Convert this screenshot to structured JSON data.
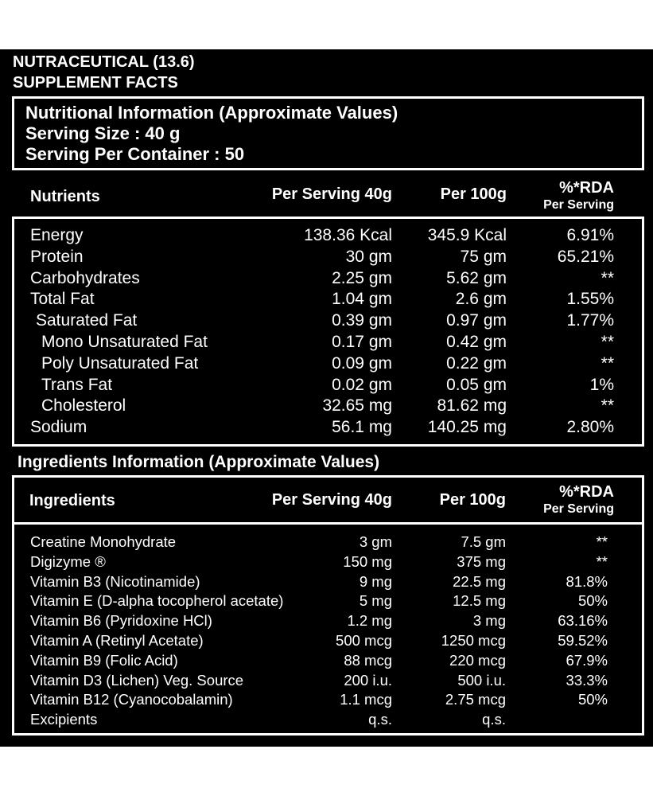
{
  "header": {
    "line1": "NUTRACEUTICAL (13.6)",
    "line2": "SUPPLEMENT FACTS"
  },
  "nutrition_info": {
    "title": "Nutritional Information (Approximate Values)",
    "serving_size": "Serving Size : 40 g",
    "servings_per_container": "Serving Per Container : 50"
  },
  "nutrients_table": {
    "headers": {
      "name": "Nutrients",
      "per_serving": "Per Serving 40g",
      "per_100g": "Per 100g",
      "rda": "%*RDA",
      "rda_sub": "Per Serving"
    },
    "rows": [
      {
        "name": "Energy",
        "per_serving": "138.36 Kcal",
        "per_100g": "345.9 Kcal",
        "rda": "6.91%"
      },
      {
        "name": "Protein",
        "per_serving": "30 gm",
        "per_100g": "75 gm",
        "rda": "65.21%"
      },
      {
        "name": "Carbohydrates",
        "per_serving": "2.25 gm",
        "per_100g": "5.62 gm",
        "rda": "**"
      },
      {
        "name": "Total Fat",
        "per_serving": "1.04 gm",
        "per_100g": "2.6 gm",
        "rda": "1.55%"
      },
      {
        "name": "Saturated Fat",
        "per_serving": "0.39 gm",
        "per_100g": "0.97 gm",
        "rda": "1.77%"
      },
      {
        "name": "Mono Unsaturated Fat",
        "per_serving": "0.17 gm",
        "per_100g": "0.42 gm",
        "rda": "**"
      },
      {
        "name": "Poly Unsaturated Fat",
        "per_serving": "0.09 gm",
        "per_100g": "0.22 gm",
        "rda": "**"
      },
      {
        "name": "Trans Fat",
        "per_serving": "0.02 gm",
        "per_100g": "0.05 gm",
        "rda": "1%"
      },
      {
        "name": "Cholesterol",
        "per_serving": "32.65 mg",
        "per_100g": "81.62 mg",
        "rda": "**"
      },
      {
        "name": "Sodium",
        "per_serving": "56.1 mg",
        "per_100g": "140.25 mg",
        "rda": "2.80%"
      }
    ]
  },
  "ingredients_section": {
    "title": "Ingredients Information (Approximate Values)"
  },
  "ingredients_table": {
    "headers": {
      "name": "Ingredients",
      "per_serving": "Per Serving 40g",
      "per_100g": "Per 100g",
      "rda": "%*RDA",
      "rda_sub": "Per Serving"
    },
    "rows": [
      {
        "name": "Creatine Monohydrate",
        "per_serving": "3 gm",
        "per_100g": "7.5 gm",
        "rda": "**"
      },
      {
        "name": "Digizyme ®",
        "per_serving": "150 mg",
        "per_100g": "375 mg",
        "rda": "**"
      },
      {
        "name": "Vitamin B3 (Nicotinamide)",
        "per_serving": "9 mg",
        "per_100g": "22.5 mg",
        "rda": "81.8%"
      },
      {
        "name": "Vitamin E (D-alpha tocopherol acetate)",
        "per_serving": "5 mg",
        "per_100g": "12.5 mg",
        "rda": "50%"
      },
      {
        "name": "Vitamin B6 (Pyridoxine HCl)",
        "per_serving": "1.2 mg",
        "per_100g": "3 mg",
        "rda": "63.16%"
      },
      {
        "name": "Vitamin A (Retinyl Acetate)",
        "per_serving": "500 mcg",
        "per_100g": "1250 mcg",
        "rda": "59.52%"
      },
      {
        "name": "Vitamin B9 (Folic Acid)",
        "per_serving": "88 mcg",
        "per_100g": "220 mcg",
        "rda": "67.9%"
      },
      {
        "name": "Vitamin D3 (Lichen) Veg. Source",
        "per_serving": "200 i.u.",
        "per_100g": "500 i.u.",
        "rda": "33.3%"
      },
      {
        "name": "Vitamin B12 (Cyanocobalamin)",
        "per_serving": "1.1 mcg",
        "per_100g": "2.75 mcg",
        "rda": "50%"
      },
      {
        "name": "Excipients",
        "per_serving": "q.s.",
        "per_100g": "q.s.",
        "rda": ""
      }
    ]
  }
}
